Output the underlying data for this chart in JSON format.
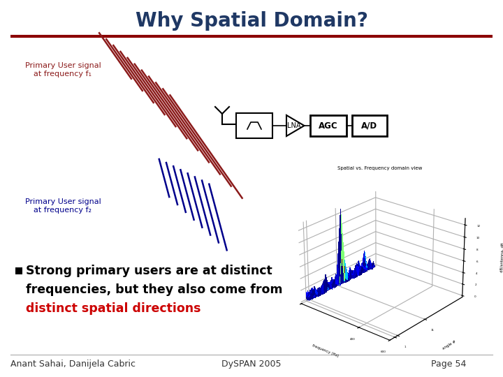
{
  "title": "Why Spatial Domain?",
  "title_color": "#1F3864",
  "title_fontsize": 20,
  "label1_text": "Primary User signal\nat frequency f₁",
  "label2_text": "Primary User signal\nat frequency f₂",
  "label1_color": "#8B1A1A",
  "label2_color": "#00008B",
  "red_line_color": "#8B1A1A",
  "blue_line_color": "#00008B",
  "bullet_text1": "Strong primary users are at distinct",
  "bullet_text2": "frequencies, but they also come from",
  "bullet_text3": "distinct spatial directions",
  "bullet_color": "#000000",
  "highlight_color": "#CC0000",
  "footer_left": "Anant Sahai, Danijela Cabric",
  "footer_center": "DySPAN 2005",
  "footer_right": "Page 54",
  "footer_color": "#333333",
  "footer_fontsize": 9,
  "bg_color": "#FFFFFF",
  "rule_color": "#8B0000"
}
